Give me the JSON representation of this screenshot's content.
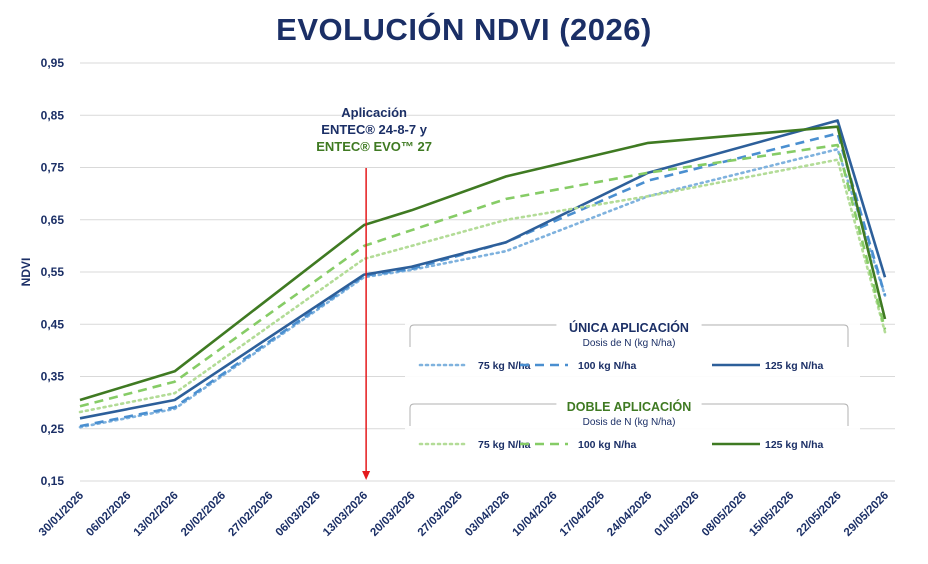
{
  "chart_data": {
    "type": "line",
    "title": "EVOLUCIÓN NDVI (2026)",
    "ylabel": "NDVI",
    "ylim": [
      0.15,
      0.95
    ],
    "yticks": [
      "0,95",
      "0,85",
      "0,75",
      "0,65",
      "0,55",
      "0,45",
      "0,35",
      "0,25",
      "0,15"
    ],
    "ytick_values": [
      0.95,
      0.85,
      0.75,
      0.65,
      0.55,
      0.45,
      0.35,
      0.25,
      0.15
    ],
    "categories": [
      "30/01/2026",
      "06/02/2026",
      "13/02/2026",
      "20/02/2026",
      "27/02/2026",
      "06/03/2026",
      "13/03/2026",
      "20/03/2026",
      "27/03/2026",
      "03/04/2026",
      "10/04/2026",
      "17/04/2026",
      "24/04/2026",
      "01/05/2026",
      "08/05/2026",
      "15/05/2026",
      "22/05/2026",
      "29/05/2026"
    ],
    "grid": "horizontal",
    "annotation": {
      "lines": [
        "Aplicación",
        "ENTEC® 24-8-7 y",
        "ENTEC® EVO™ 27"
      ],
      "at_category": "13/03/2026"
    },
    "legend_groups": [
      {
        "title": "ÚNICA APLICACIÓN",
        "subtitle": "Dosis de N (kg N/ha)",
        "color": "#1b2f66"
      },
      {
        "title": "DOBLE APLICACIÓN",
        "subtitle": "Dosis de N (kg N/ha)",
        "color": "#3f7a22"
      }
    ],
    "series": [
      {
        "name": "75 kg N/ha",
        "group": 0,
        "color": "#7fb2de",
        "dash": "dot",
        "x": [
          0,
          2,
          6,
          7,
          9,
          12,
          16,
          17
        ],
        "values": [
          0.253,
          0.288,
          0.54,
          0.554,
          0.59,
          0.695,
          0.785,
          0.505
        ]
      },
      {
        "name": "100 kg N/ha",
        "group": 0,
        "color": "#4a8fd0",
        "dash": "dash",
        "x": [
          0,
          2,
          6,
          7,
          9,
          12,
          16,
          17
        ],
        "values": [
          0.255,
          0.291,
          0.543,
          0.556,
          0.607,
          0.725,
          0.815,
          0.505
        ]
      },
      {
        "name": "125 kg N/ha",
        "group": 0,
        "color": "#2d5f9a",
        "dash": "solid",
        "x": [
          0,
          2,
          6,
          7,
          9,
          12,
          16,
          17
        ],
        "values": [
          0.27,
          0.305,
          0.545,
          0.56,
          0.607,
          0.74,
          0.84,
          0.54
        ]
      },
      {
        "name": "75 kg N/ha",
        "group": 1,
        "color": "#b3dc97",
        "dash": "dot",
        "x": [
          0,
          2,
          6,
          7,
          9,
          12,
          16,
          17
        ],
        "values": [
          0.282,
          0.318,
          0.575,
          0.6,
          0.65,
          0.695,
          0.765,
          0.435
        ]
      },
      {
        "name": "100 kg N/ha",
        "group": 1,
        "color": "#86cc66",
        "dash": "dash",
        "x": [
          0,
          2,
          6,
          7,
          9,
          12,
          16,
          17
        ],
        "values": [
          0.293,
          0.34,
          0.6,
          0.63,
          0.69,
          0.74,
          0.793,
          0.44
        ]
      },
      {
        "name": "125 kg N/ha",
        "group": 1,
        "color": "#3f7a22",
        "dash": "solid",
        "x": [
          0,
          2,
          6,
          7,
          9,
          12,
          16,
          17
        ],
        "values": [
          0.305,
          0.36,
          0.64,
          0.668,
          0.733,
          0.797,
          0.828,
          0.46
        ]
      }
    ]
  }
}
